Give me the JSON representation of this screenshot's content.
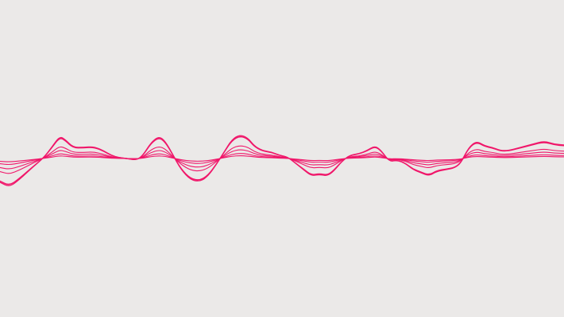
{
  "background_color": "#ebe9e8",
  "stroke_color": "#f0176a",
  "waves": [
    {
      "name": "wave-outer-1",
      "amplitude": 1.0
    },
    {
      "name": "wave-outer-2",
      "amplitude": 0.95
    },
    {
      "name": "wave-mid-1",
      "amplitude": 0.55
    },
    {
      "name": "wave-mid-2",
      "amplitude": 0.38
    },
    {
      "name": "wave-inner-1",
      "amplitude": 0.22
    },
    {
      "name": "wave-inner-2",
      "amplitude": 0.12
    }
  ]
}
